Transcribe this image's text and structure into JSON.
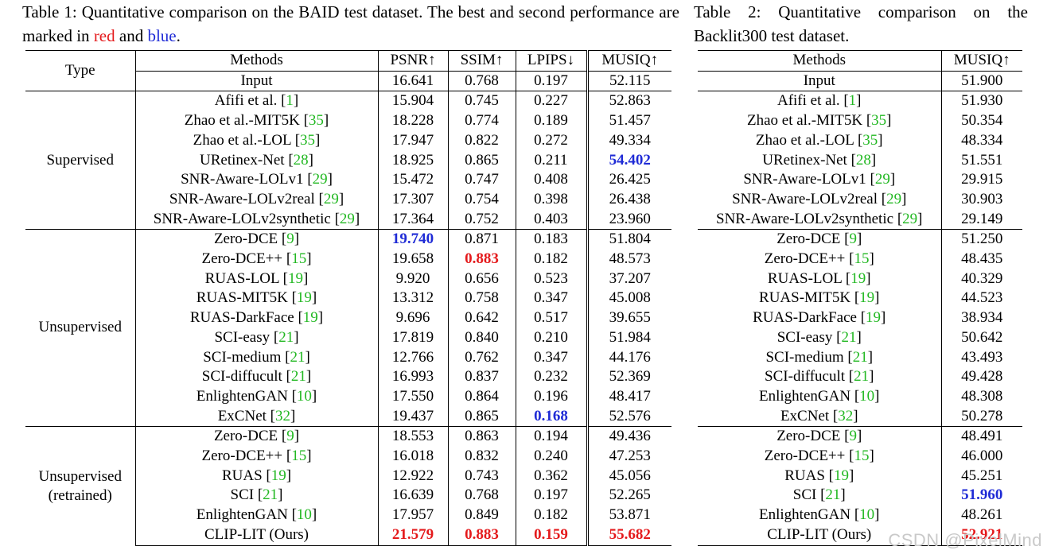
{
  "table1": {
    "caption": {
      "prefix": "Table 1: Quantitative comparison on the BAID test dataset. The best and second performance are marked in ",
      "red_word": "red",
      "and_word": " and ",
      "blue_word": "blue",
      "suffix": "."
    },
    "headers": {
      "type": "Type",
      "methods": "Methods",
      "psnr": "PSNR↑",
      "ssim": "SSIM↑",
      "lpips": "LPIPS↓",
      "musiq": "MUSIQ↑"
    },
    "input_row": {
      "method": "Input",
      "psnr": "16.641",
      "ssim": "0.768",
      "lpips": "0.197",
      "musiq": "52.115"
    },
    "groups": [
      {
        "type": "Supervised",
        "rows": [
          {
            "method": "Afifi et al. ",
            "ref": "1",
            "psnr": "15.904",
            "ssim": "0.745",
            "lpips": "0.227",
            "musiq": "52.863"
          },
          {
            "method": "Zhao et al.-MIT5K ",
            "ref": "35",
            "psnr": "18.228",
            "ssim": "0.774",
            "lpips": "0.189",
            "musiq": "51.457"
          },
          {
            "method": "Zhao et al.-LOL ",
            "ref": "35",
            "psnr": "17.947",
            "ssim": "0.822",
            "lpips": "0.272",
            "musiq": "49.334"
          },
          {
            "method": "URetinex-Net ",
            "ref": "28",
            "psnr": "18.925",
            "ssim": "0.865",
            "lpips": "0.211",
            "musiq": "54.402"
          },
          {
            "method": "SNR-Aware-LOLv1 ",
            "ref": "29",
            "psnr": "15.472",
            "ssim": "0.747",
            "lpips": "0.408",
            "musiq": "26.425"
          },
          {
            "method": "SNR-Aware-LOLv2real ",
            "ref": "29",
            "psnr": "17.307",
            "ssim": "0.754",
            "lpips": "0.398",
            "musiq": "26.438"
          },
          {
            "method": "SNR-Aware-LOLv2synthetic ",
            "ref": "29",
            "psnr": "17.364",
            "ssim": "0.752",
            "lpips": "0.403",
            "musiq": "23.960"
          }
        ]
      },
      {
        "type": "Unsupervised",
        "rows": [
          {
            "method": "Zero-DCE ",
            "ref": "9",
            "psnr": "19.740",
            "ssim": "0.871",
            "lpips": "0.183",
            "musiq": "51.804"
          },
          {
            "method": "Zero-DCE++ ",
            "ref": "15",
            "psnr": "19.658",
            "ssim": "0.883",
            "lpips": "0.182",
            "musiq": "48.573"
          },
          {
            "method": "RUAS-LOL ",
            "ref": "19",
            "psnr": "9.920",
            "ssim": "0.656",
            "lpips": "0.523",
            "musiq": "37.207"
          },
          {
            "method": "RUAS-MIT5K ",
            "ref": "19",
            "psnr": "13.312",
            "ssim": "0.758",
            "lpips": "0.347",
            "musiq": "45.008"
          },
          {
            "method": "RUAS-DarkFace ",
            "ref": "19",
            "psnr": "9.696",
            "ssim": "0.642",
            "lpips": "0.517",
            "musiq": "39.655"
          },
          {
            "method": "SCI-easy ",
            "ref": "21",
            "psnr": "17.819",
            "ssim": "0.840",
            "lpips": "0.210",
            "musiq": "51.984"
          },
          {
            "method": "SCI-medium ",
            "ref": "21",
            "psnr": "12.766",
            "ssim": "0.762",
            "lpips": "0.347",
            "musiq": "44.176"
          },
          {
            "method": "SCI-diffucult ",
            "ref": "21",
            "psnr": "16.993",
            "ssim": "0.837",
            "lpips": "0.232",
            "musiq": "52.369"
          },
          {
            "method": "EnlightenGAN ",
            "ref": "10",
            "psnr": "17.550",
            "ssim": "0.864",
            "lpips": "0.196",
            "musiq": "48.417"
          },
          {
            "method": "ExCNet ",
            "ref": "32",
            "psnr": "19.437",
            "ssim": "0.865",
            "lpips": "0.168",
            "musiq": "52.576"
          }
        ]
      },
      {
        "type_line1": "Unsupervised",
        "type_line2": "(retrained)",
        "rows": [
          {
            "method": "Zero-DCE ",
            "ref": "9",
            "psnr": "18.553",
            "ssim": "0.863",
            "lpips": "0.194",
            "musiq": "49.436"
          },
          {
            "method": "Zero-DCE++ ",
            "ref": "15",
            "psnr": "16.018",
            "ssim": "0.832",
            "lpips": "0.240",
            "musiq": "47.253"
          },
          {
            "method": "RUAS ",
            "ref": "19",
            "psnr": "12.922",
            "ssim": "0.743",
            "lpips": "0.362",
            "musiq": "45.056"
          },
          {
            "method": "SCI ",
            "ref": "21",
            "psnr": "16.639",
            "ssim": "0.768",
            "lpips": "0.197",
            "musiq": "52.265"
          },
          {
            "method": "EnlightenGAN ",
            "ref": "10",
            "psnr": "17.957",
            "ssim": "0.849",
            "lpips": "0.182",
            "musiq": "53.871"
          },
          {
            "method": "CLIP-LIT (Ours)",
            "ref": "",
            "psnr": "21.579",
            "ssim": "0.883",
            "lpips": "0.159",
            "musiq": "55.682"
          }
        ]
      }
    ]
  },
  "table2": {
    "caption": "Table 2: Quantitative comparison on the Backlit300 test dataset.",
    "headers": {
      "methods": "Methods",
      "musiq": "MUSIQ↑"
    },
    "input_row": {
      "method": "Input",
      "musiq": "51.900"
    },
    "groups": [
      {
        "rows": [
          {
            "method": "Afifi et al. ",
            "ref": "1",
            "musiq": "51.930"
          },
          {
            "method": "Zhao et al.-MIT5K ",
            "ref": "35",
            "musiq": "50.354"
          },
          {
            "method": "Zhao et al.-LOL ",
            "ref": "35",
            "musiq": "48.334"
          },
          {
            "method": "URetinex-Net ",
            "ref": "28",
            "musiq": "51.551"
          },
          {
            "method": "SNR-Aware-LOLv1 ",
            "ref": "29",
            "musiq": "29.915"
          },
          {
            "method": "SNR-Aware-LOLv2real ",
            "ref": "29",
            "musiq": "30.903"
          },
          {
            "method": "SNR-Aware-LOLv2synthetic ",
            "ref": "29",
            "musiq": "29.149"
          }
        ]
      },
      {
        "rows": [
          {
            "method": "Zero-DCE ",
            "ref": "9",
            "musiq": "51.250"
          },
          {
            "method": "Zero-DCE++ ",
            "ref": "15",
            "musiq": "48.435"
          },
          {
            "method": "RUAS-LOL ",
            "ref": "19",
            "musiq": "40.329"
          },
          {
            "method": "RUAS-MIT5K ",
            "ref": "19",
            "musiq": "44.523"
          },
          {
            "method": "RUAS-DarkFace ",
            "ref": "19",
            "musiq": "38.934"
          },
          {
            "method": "SCI-easy ",
            "ref": "21",
            "musiq": "50.642"
          },
          {
            "method": "SCI-medium ",
            "ref": "21",
            "musiq": "43.493"
          },
          {
            "method": "SCI-diffucult ",
            "ref": "21",
            "musiq": "49.428"
          },
          {
            "method": "EnlightenGAN ",
            "ref": "10",
            "musiq": "48.308"
          },
          {
            "method": "ExCNet ",
            "ref": "32",
            "musiq": "50.278"
          }
        ]
      },
      {
        "rows": [
          {
            "method": "Zero-DCE ",
            "ref": "9",
            "musiq": "48.491"
          },
          {
            "method": "Zero-DCE++ ",
            "ref": "15",
            "musiq": "46.000"
          },
          {
            "method": "RUAS ",
            "ref": "19",
            "musiq": "45.251"
          },
          {
            "method": "SCI ",
            "ref": "21",
            "musiq": "51.960"
          },
          {
            "method": "EnlightenGAN ",
            "ref": "10",
            "musiq": "48.261"
          },
          {
            "method": "CLIP-LIT (Ours)",
            "ref": "",
            "musiq": "52.921"
          }
        ]
      }
    ]
  },
  "watermark": "CSDN @PixelMind",
  "colors": {
    "best": "#e41a1c",
    "second": "#1f2bd6",
    "ref": "#22b822"
  }
}
